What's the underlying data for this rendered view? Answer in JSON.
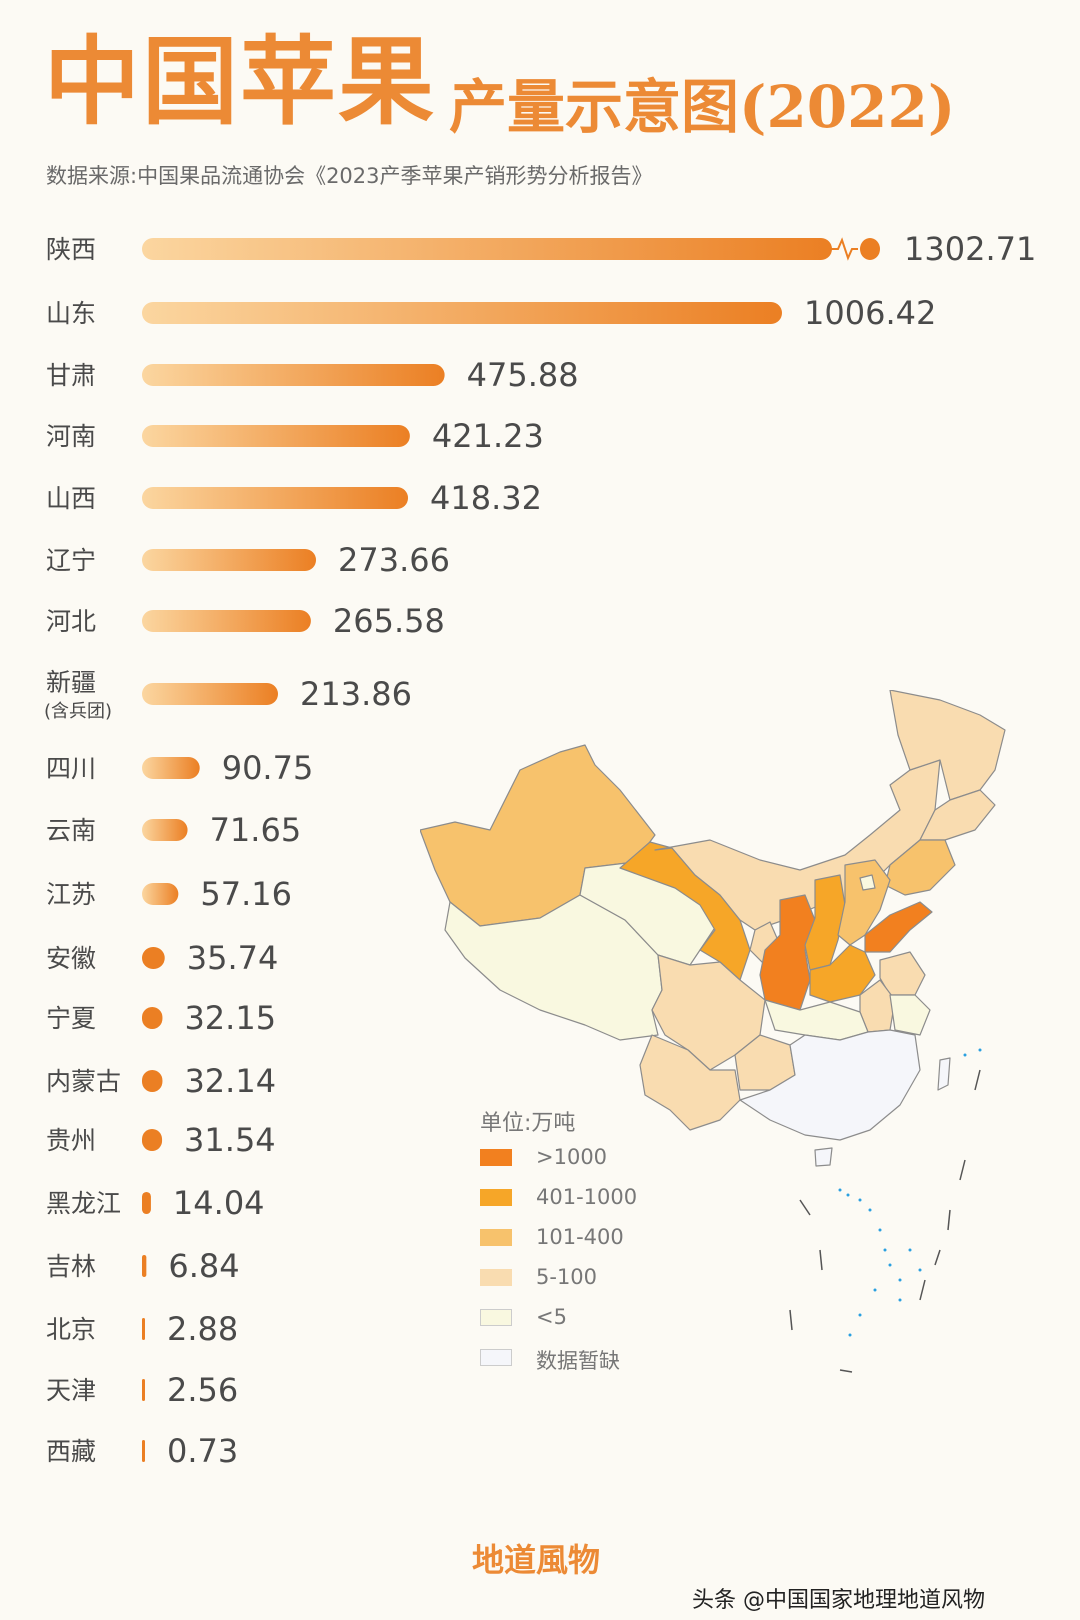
{
  "title": {
    "main": "中国苹果",
    "sub": "产量示意图(2022)"
  },
  "source": "数据来源:中国果品流通协会《2023产季苹果产销形势分析报告》",
  "chart_data": {
    "type": "bar",
    "orientation": "horizontal",
    "unit": "万吨",
    "axis_break": "陕西",
    "categories": [
      "陕西",
      "山东",
      "甘肃",
      "河南",
      "山西",
      "辽宁",
      "河北",
      "新疆",
      "四川",
      "云南",
      "江苏",
      "安徽",
      "宁夏",
      "内蒙古",
      "贵州",
      "黑龙江",
      "吉林",
      "北京",
      "天津",
      "西藏"
    ],
    "category_notes": {
      "新疆": "(含兵团)"
    },
    "values": [
      1302.71,
      1006.42,
      475.88,
      421.23,
      418.32,
      273.66,
      265.58,
      213.86,
      90.75,
      71.65,
      57.16,
      35.74,
      32.15,
      32.14,
      31.54,
      14.04,
      6.84,
      2.88,
      2.56,
      0.73
    ],
    "value_labels": [
      "1302.71",
      "1006.42",
      "475.88",
      "421.23",
      "418.32",
      "273.66",
      "265.58",
      "213.86",
      "90.75",
      "71.65",
      "57.16",
      "35.74",
      "32.15",
      "32.14",
      "31.54",
      "14.04",
      "6.84",
      "2.88",
      "2.56",
      "0.73"
    ],
    "gradient_colors": [
      "#fbd6a0",
      "#eb7f23"
    ]
  },
  "map": {
    "legend_title": "单位:万吨",
    "legend": [
      {
        "label": ">1000",
        "color": "#f2801f"
      },
      {
        "label": "401-1000",
        "color": "#f6a628"
      },
      {
        "label": "101-400",
        "color": "#f7c26c"
      },
      {
        "label": "5-100",
        "color": "#f9dcb0"
      },
      {
        "label": "<5",
        "color": "#f9f8e0"
      },
      {
        "label": "数据暂缺",
        "color": "#f5f6fa"
      }
    ]
  },
  "brand": "地道風物",
  "watermark": "头条 @中国国家地理地道风物"
}
